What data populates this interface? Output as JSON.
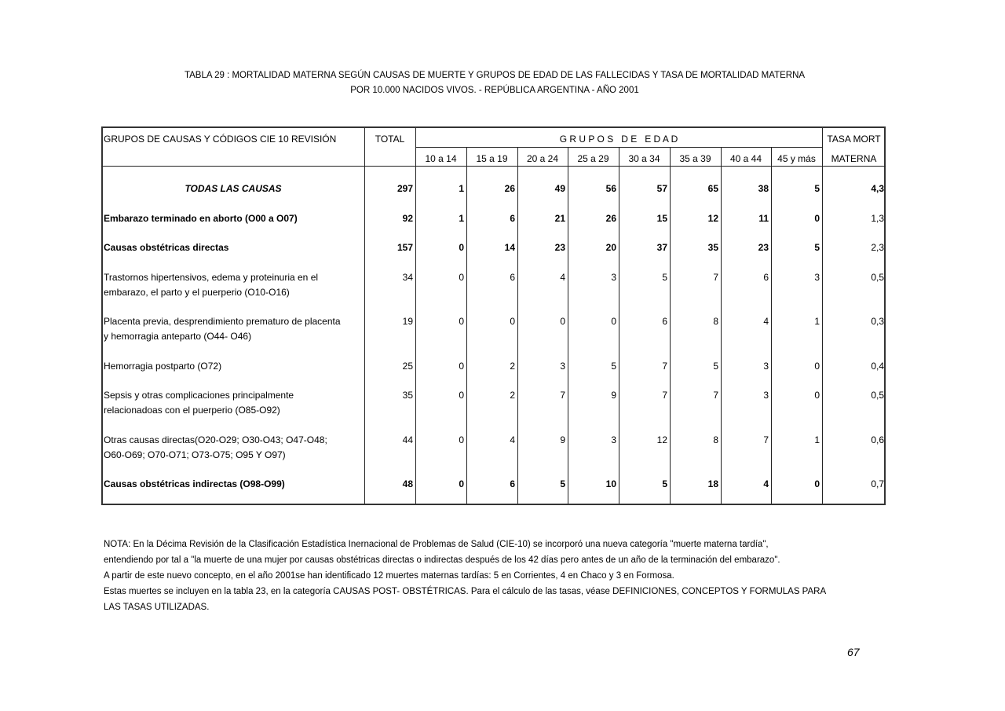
{
  "title": {
    "line1": "TABLA 29 : MORTALIDAD MATERNA SEGÚN CAUSAS DE MUERTE Y GRUPOS DE EDAD DE LAS FALLECIDAS Y TASA DE MORTALIDAD MATERNA",
    "line2": "POR 10.000 NACIDOS VIVOS. - REPÚBLICA ARGENTINA  -  AÑO 2001"
  },
  "table": {
    "header": {
      "causes": "GRUPOS DE CAUSAS Y CÓDIGOS CIE 10 REVISIÓN",
      "total": "TOTAL",
      "age_groups": "G R U P O S   D E   E D A D",
      "tasa_line1": "TASA MORT",
      "tasa_line2": "MATERNA",
      "ages": [
        "10 a 14",
        "15 a 19",
        "20 a 24",
        "25 a 29",
        "30 a 34",
        "35 a 39",
        "40 a 44",
        "45 y más"
      ]
    },
    "rows": [
      {
        "cause": [
          "TODAS LAS CAUSAS"
        ],
        "total": "297",
        "ages": [
          "1",
          "26",
          "49",
          "56",
          "57",
          "65",
          "38",
          "5"
        ],
        "tasa": "4,3",
        "style": "total"
      },
      {
        "cause": [
          "Embarazo terminado en aborto (O00  a O07)"
        ],
        "total": "92",
        "ages": [
          "1",
          "6",
          "21",
          "26",
          "15",
          "12",
          "11",
          "0"
        ],
        "tasa": "1,3",
        "style": "bold"
      },
      {
        "cause": [
          "Causas obstétricas directas"
        ],
        "total": "157",
        "ages": [
          "0",
          "14",
          "23",
          "20",
          "37",
          "35",
          "23",
          "5"
        ],
        "tasa": "2,3",
        "style": "bold"
      },
      {
        "cause": [
          "Trastornos hipertensivos, edema y proteinuria en el",
          "embarazo, el parto y el puerperio (O10-O16)"
        ],
        "total": "34",
        "ages": [
          "0",
          "6",
          "4",
          "3",
          "5",
          "7",
          "6",
          "3"
        ],
        "tasa": "0,5",
        "style": "normal"
      },
      {
        "cause": [
          "Placenta previa, desprendimiento prematuro de placenta",
          "y hemorragia anteparto (O44- O46)"
        ],
        "total": "19",
        "ages": [
          "0",
          "0",
          "0",
          "0",
          "6",
          "8",
          "4",
          "1"
        ],
        "tasa": "0,3",
        "style": "normal"
      },
      {
        "cause": [
          "Hemorragia postparto (O72)"
        ],
        "total": "25",
        "ages": [
          "0",
          "2",
          "3",
          "5",
          "7",
          "5",
          "3",
          "0"
        ],
        "tasa": "0,4",
        "style": "normal"
      },
      {
        "cause": [
          "Sepsis y otras complicaciones principalmente",
          "relacionadoas con el puerperio (O85-O92)"
        ],
        "total": "35",
        "ages": [
          "0",
          "2",
          "7",
          "9",
          "7",
          "7",
          "3",
          "0"
        ],
        "tasa": "0,5",
        "style": "normal"
      },
      {
        "cause": [
          "Otras causas directas(O20-O29; O30-O43; O47-O48;",
          "O60-O69; O70-O71; O73-O75; O95 Y O97)"
        ],
        "total": "44",
        "ages": [
          "0",
          "4",
          "9",
          "3",
          "12",
          "8",
          "7",
          "1"
        ],
        "tasa": "0,6",
        "style": "normal"
      },
      {
        "cause": [
          "Causas obstétricas indirectas (O98-O99)"
        ],
        "total": "48",
        "ages": [
          "0",
          "6",
          "5",
          "10",
          "5",
          "18",
          "4",
          "0"
        ],
        "tasa": "0,7",
        "style": "bold-tasa-normal"
      }
    ]
  },
  "notes": [
    "NOTA: En la Décima Revisión de la Clasificación  Estadística Inernacional de Problemas de Salud (CIE-10) se incorporó una nueva categoría \"muerte  materna tardía\",",
    "entendiendo por tal  a \"la muerte de una mujer por causas obstétricas directas o indirectas después de los 42 días pero antes de un año de la terminación del embarazo\".",
    "A partir de este nuevo concepto, en el año 2001se han identificado 12 muertes maternas tardías: 5 en Corrientes, 4 en Chaco y 3 en Formosa.",
    "Estas muertes se incluyen en la tabla 23, en la categoría CAUSAS POST- OBSTÉTRICAS. Para el cálculo de las tasas, véase DEFINICIONES, CONCEPTOS Y FORMULAS PARA",
    "LAS  TASAS  UTILIZADAS."
  ],
  "page_number": "67"
}
